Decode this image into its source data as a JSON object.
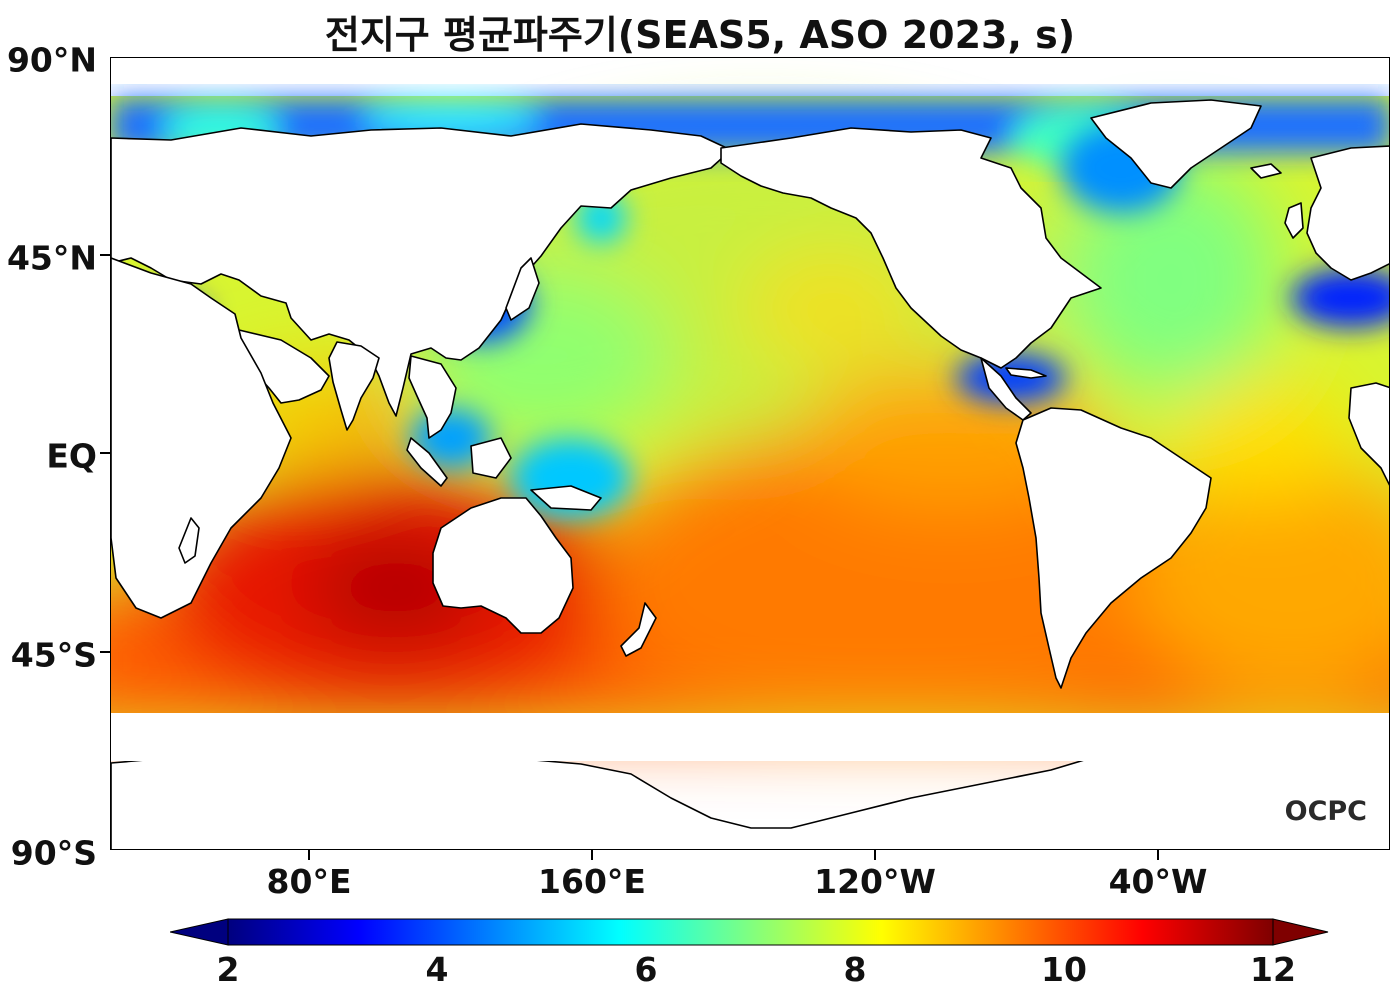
{
  "title": "전지구 평균파주기(SEAS5, ASO 2023, s)",
  "watermark": "OCPC",
  "axes": {
    "y_ticks": [
      "90°N",
      "45°N",
      "EQ",
      "45°S",
      "90°S"
    ],
    "x_ticks": [
      "80°E",
      "160°E",
      "120°W",
      "40°W"
    ]
  },
  "colorbar": {
    "ticks": [
      "2",
      "4",
      "6",
      "8",
      "10",
      "12"
    ],
    "min": 2,
    "max": 12,
    "extend": "both",
    "colormap": "jet",
    "colors": [
      "#00007f",
      "#0000ff",
      "#0080ff",
      "#00ffff",
      "#80ff80",
      "#ffff00",
      "#ff8000",
      "#ff0000",
      "#7f0000"
    ]
  },
  "colors": {
    "land": "#ffffff",
    "coastline": "#000000",
    "high_period": "#cc0000",
    "mid_period": "#b8f040",
    "low_period": "#0030ff"
  }
}
